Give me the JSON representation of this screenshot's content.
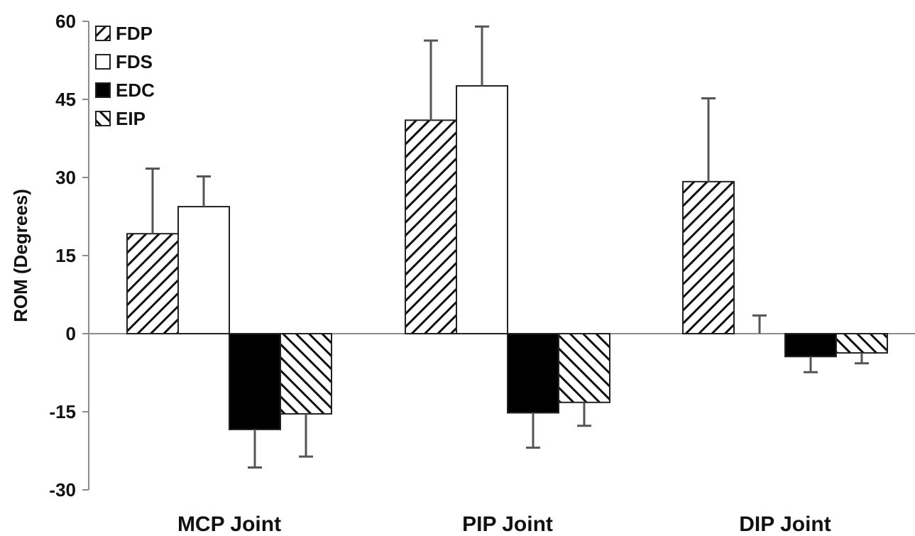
{
  "chart_data": {
    "type": "bar",
    "title": "",
    "xlabel": "",
    "ylabel": "ROM (Degrees)",
    "ylim": [
      -30,
      60
    ],
    "yticks": [
      60,
      45,
      30,
      15,
      0,
      -15,
      -30
    ],
    "grid": false,
    "legend_position": "top-left",
    "categories": [
      "MCP Joint",
      "PIP Joint",
      "DIP Joint"
    ],
    "series": [
      {
        "name": "FDP",
        "pattern": "back-diagonal-hatch",
        "values": [
          19.2,
          41.0,
          29.2
        ],
        "errors": [
          12.5,
          15.3,
          16.0
        ]
      },
      {
        "name": "FDS",
        "pattern": "white",
        "values": [
          24.4,
          47.6,
          0.0
        ],
        "errors": [
          5.8,
          11.4,
          3.5
        ]
      },
      {
        "name": "EDC",
        "pattern": "solid-black",
        "values": [
          -18.4,
          -15.2,
          -4.4
        ],
        "errors": [
          7.3,
          6.7,
          3.0
        ]
      },
      {
        "name": "EIP",
        "pattern": "forward-diagonal-hatch",
        "values": [
          -15.4,
          -13.2,
          -3.7
        ],
        "errors": [
          8.2,
          4.5,
          2.0
        ]
      }
    ],
    "colors": {
      "axis": "#8c8c8c",
      "bar_stroke": "#222222",
      "fill_dark": "#000000",
      "error_bar": "#555555"
    }
  }
}
